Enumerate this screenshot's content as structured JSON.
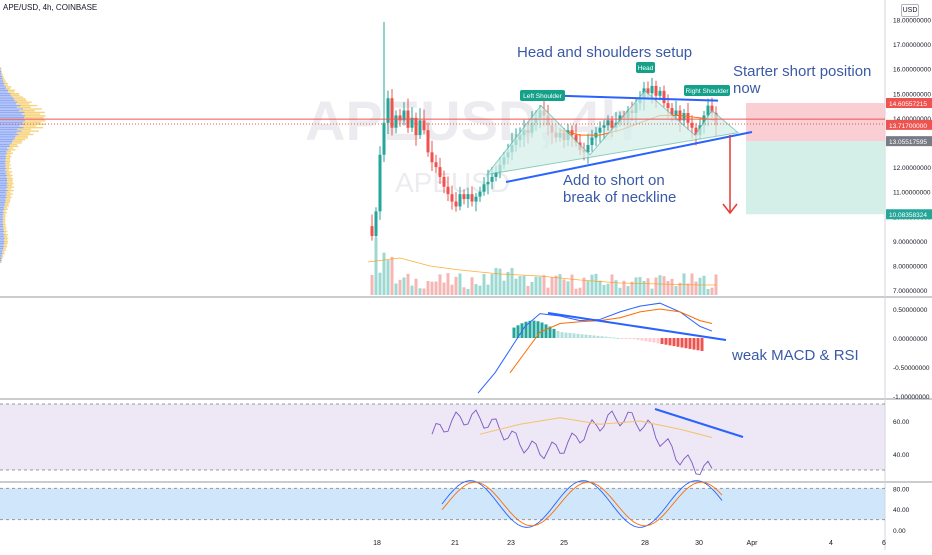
{
  "header": {
    "symbol": "APE/USD, 4h, COINBASE",
    "currency": "USD"
  },
  "watermark": {
    "symbol": "APEUSD, 4h",
    "small": "APEUSD"
  },
  "colors": {
    "up": "#26a69a",
    "down": "#ef5350",
    "stop_zone": "#f8c7cc",
    "target_zone": "#cfece6",
    "trendline": "#2962ff",
    "resistance": "#ef5350",
    "pattern_fill": "#d5efe9",
    "macd_line": "#2962ff",
    "signal_line": "#ff6d00",
    "rsi_line": "#7e57c2",
    "rsi_ma": "#f5c26b",
    "rsi_band": "#ede7f6",
    "stoch_band": "#cfe6fb"
  },
  "chart_data": [
    {
      "type": "candlestick",
      "pane": "price",
      "symbol": "APE/USD",
      "timeframe": "4h",
      "exchange": "COINBASE",
      "y_ticks": [
        "18.00000000",
        "17.00000000",
        "16.00000000",
        "15.00000000",
        "14.00000000",
        "13.00000000",
        "12.00000000",
        "11.00000000",
        "10.00000000",
        "9.00000000",
        "8.00000000",
        "7.00000000"
      ],
      "x_ticks": [
        "18",
        "21",
        "23",
        "25",
        "28",
        "30",
        "Apr",
        "4",
        "6"
      ],
      "price_labels": [
        {
          "value": "14.60557215",
          "kind": "stop"
        },
        {
          "value": "13.71700000",
          "kind": "last"
        },
        {
          "value": "13.05517595",
          "kind": "entry"
        },
        {
          "value": "10.08358324",
          "kind": "target"
        }
      ],
      "annotations": [
        "Head and shoulders setup",
        "Starter short position now",
        "Add to short on break of neckline"
      ],
      "pattern_labels": [
        "Left Shoulder",
        "Head",
        "Right Shoulder"
      ]
    },
    {
      "type": "bar",
      "pane": "macd",
      "y_ticks": [
        "0.50000000",
        "0.00000000",
        "-0.50000000",
        "-1.00000000"
      ],
      "annotation": "weak MACD & RSI"
    },
    {
      "type": "line",
      "pane": "rsi",
      "y_ticks": [
        "60.00",
        "40.00"
      ]
    },
    {
      "type": "line",
      "pane": "stoch",
      "y_ticks": [
        "80.00",
        "40.00",
        "0.00"
      ]
    }
  ]
}
